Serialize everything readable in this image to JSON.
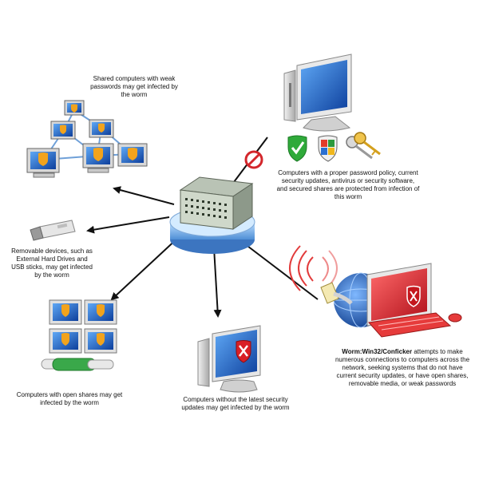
{
  "captions": {
    "shared": "Shared computers with weak passwords may get infected by the worm",
    "protected": "Computers with a proper password policy, current security updates, antivirus or security software, and secured shares are protected from infection of this worm",
    "removable": "Removable devices, such as External Hard Drives and USB sticks, may get infected by the worm",
    "open_shares": "Computers with open shares may get infected by the worm",
    "no_updates": "Computers without the latest security updates may get infected by the worm",
    "worm_name": "Worm:Win32/Conficker",
    "worm_desc": " attempts to make numerous connections to computers across the network, seeking systems that do not have current security updates, or have open shares, removable media, or weak passwords"
  },
  "icons": {
    "hub": "network-hub-icon",
    "blocked": "blocked-sign-icon",
    "shield_check": "green-shield-check-icon",
    "windows_shield": "windows-security-shield-icon",
    "keys": "keys-icon",
    "usb": "usb-stick-icon",
    "warning": "warning-shield-icon",
    "error": "red-x-shield-icon",
    "globe": "globe-icon",
    "network_cable": "network-cable-icon",
    "signal": "wireless-signal-icon"
  },
  "colors": {
    "screen_blue": "#1b5fc4",
    "infected_red": "#d91f26",
    "warning_orange": "#f2a31c",
    "shield_green": "#2faa3a",
    "blocked_red": "#d3262b",
    "arrow": "#111111"
  }
}
